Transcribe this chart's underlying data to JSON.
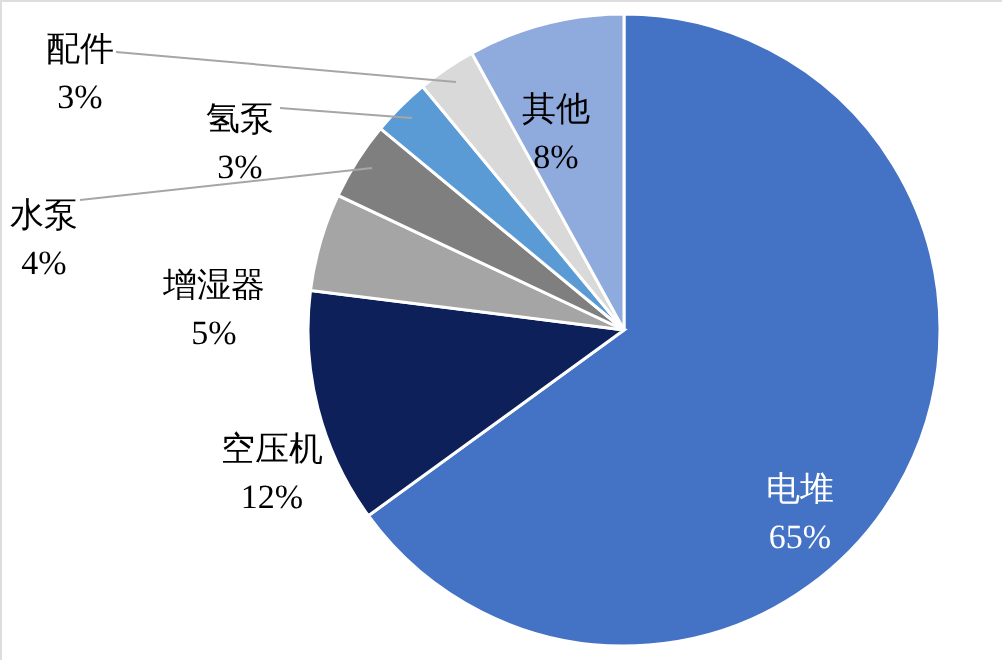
{
  "chart_data": {
    "type": "pie",
    "categories": [
      "电堆",
      "空压机",
      "增湿器",
      "水泵",
      "氢泵",
      "配件",
      "其他"
    ],
    "values": [
      65,
      12,
      5,
      4,
      3,
      3,
      8
    ],
    "colors": [
      "#4472c4",
      "#0d2059",
      "#a5a5a5",
      "#7f7f7f",
      "#5b9bd5",
      "#d9d9d9",
      "#8faadc"
    ],
    "value_labels": [
      "65%",
      "12%",
      "5%",
      "4%",
      "3%",
      "3%",
      "8%"
    ]
  }
}
